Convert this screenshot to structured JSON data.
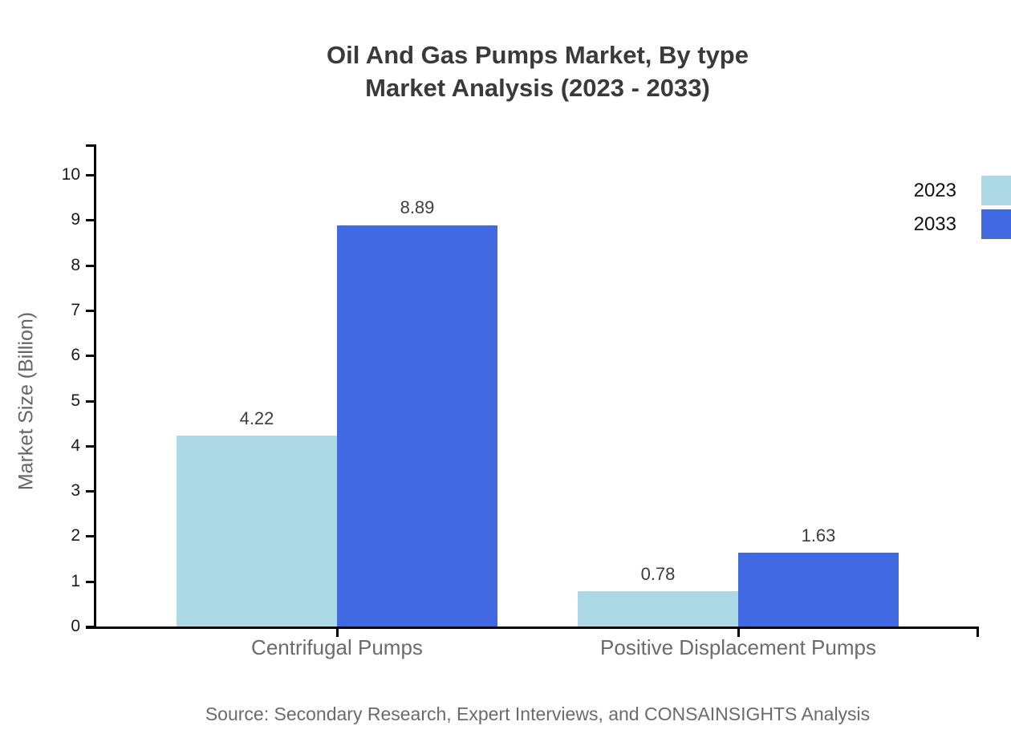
{
  "title": {
    "line1": "Oil And Gas Pumps Market, By type",
    "line2": "Market Analysis (2023 - 2033)"
  },
  "y_axis_label": "Market Size (Billion)",
  "source_note": "Source: Secondary Research, Expert Interviews, and CONSAINSIGHTS Analysis",
  "chart_data": {
    "type": "bar",
    "title": "Oil And Gas Pumps Market, By type — Market Analysis (2023 - 2033)",
    "categories": [
      "Centrifugal Pumps",
      "Positive Displacement Pumps"
    ],
    "series": [
      {
        "name": "2023",
        "color": "#ADD8E6",
        "values": [
          4.22,
          0.78
        ]
      },
      {
        "name": "2033",
        "color": "#4169E1",
        "values": [
          8.89,
          1.63
        ]
      }
    ],
    "value_labels": [
      [
        "4.22",
        "0.78"
      ],
      [
        "8.89",
        "1.63"
      ]
    ],
    "xlabel": "",
    "ylabel": "Market Size (Billion)",
    "ylim": [
      0,
      10
    ],
    "yticks": [
      0,
      1,
      2,
      3,
      4,
      5,
      6,
      7,
      8,
      9,
      10
    ],
    "grid": false,
    "legend_position": "top-right",
    "background": "#ffffff"
  },
  "colors": {
    "axis_line": "#000000",
    "title_text": "#3a3a3a",
    "tick_text": "#1a1a1a",
    "category_text": "#6b6b6b",
    "muted_text": "#666666",
    "series_2023": "#ADD8E6",
    "series_2033": "#4169E1"
  }
}
